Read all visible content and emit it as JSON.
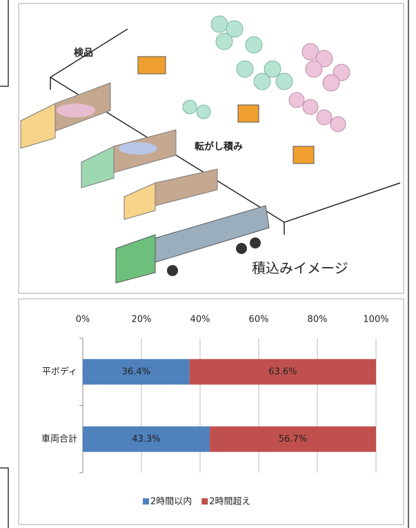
{
  "illustration": {
    "labels": [
      "検品",
      "転がし積み",
      "積込みイメージ"
    ]
  },
  "chart_data": {
    "type": "stacked-barh",
    "categories": [
      "平ボディ",
      "車両合計"
    ],
    "series": [
      {
        "name": "2時間以内",
        "color": "#4f81bd",
        "values": [
          36.4,
          43.3
        ],
        "value_labels": [
          "36.4%",
          "43.3%"
        ]
      },
      {
        "name": "2時間超え",
        "color": "#c0504d",
        "values": [
          63.6,
          56.7
        ],
        "value_labels": [
          "63.6%",
          "56.7%"
        ]
      }
    ],
    "xlim": [
      0,
      100
    ],
    "xticks": [
      {
        "value": 0,
        "label": "0%"
      },
      {
        "value": 20,
        "label": "20%"
      },
      {
        "value": 40,
        "label": "40%"
      },
      {
        "value": 60,
        "label": "60%"
      },
      {
        "value": 80,
        "label": "80%"
      },
      {
        "value": 100,
        "label": "100%"
      }
    ],
    "grid": true,
    "legend": "bottom"
  }
}
